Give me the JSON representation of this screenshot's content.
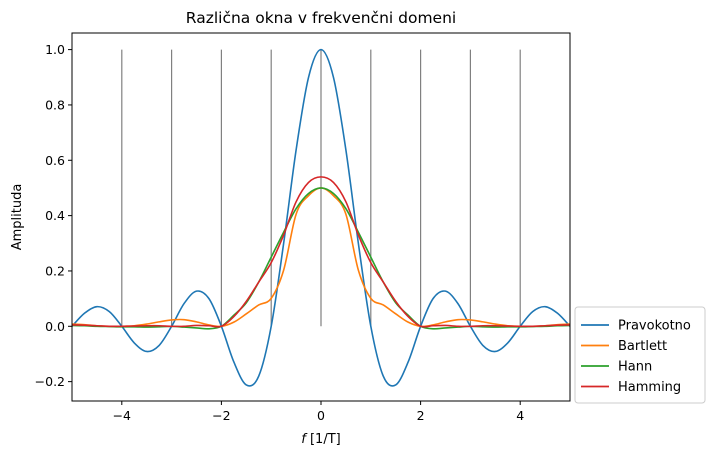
{
  "chart_data": {
    "type": "line",
    "title": "Različna okna v frekvenčni domeni",
    "xlabel_var": "f",
    "xlabel_unit": " [1/T]",
    "ylabel": "Amplituda",
    "xlim": [
      -5,
      5
    ],
    "ylim": [
      -0.27,
      1.06
    ],
    "xticks": [
      -4,
      -2,
      0,
      2,
      4
    ],
    "xtick_labels": [
      "−4",
      "−2",
      "0",
      "2",
      "4"
    ],
    "yticks": [
      -0.2,
      0.0,
      0.2,
      0.4,
      0.6,
      0.8,
      1.0
    ],
    "ytick_labels": [
      "−0.2",
      "0.0",
      "0.2",
      "0.4",
      "0.6",
      "0.8",
      "1.0"
    ],
    "grid": false,
    "legend_position": "outside-right-bottom",
    "sampling_lines": {
      "x": [
        -4,
        -3,
        -2,
        -1,
        0,
        1,
        2,
        3,
        4
      ],
      "y_from": 0,
      "y_to": 1,
      "color": "#808080"
    },
    "x": [
      -5.0,
      -4.75,
      -4.5,
      -4.25,
      -4.0,
      -3.75,
      -3.5,
      -3.25,
      -3.0,
      -2.75,
      -2.5,
      -2.25,
      -2.0,
      -1.75,
      -1.5,
      -1.25,
      -1.0,
      -0.75,
      -0.5,
      -0.25,
      0.0,
      0.25,
      0.5,
      0.75,
      1.0,
      1.25,
      1.5,
      1.75,
      2.0,
      2.25,
      2.5,
      2.75,
      3.0,
      3.25,
      3.5,
      3.75,
      4.0,
      4.25,
      4.5,
      4.75,
      5.0
    ],
    "series": [
      {
        "name": "Pravokotno",
        "color": "#1f77b4",
        "values": [
          0.0,
          0.047,
          0.071,
          0.053,
          0.0,
          -0.06,
          -0.091,
          -0.069,
          0.0,
          0.082,
          0.127,
          0.1,
          0.0,
          -0.129,
          -0.212,
          -0.18,
          0.0,
          0.3,
          0.637,
          0.9,
          1.0,
          0.9,
          0.637,
          0.3,
          0.0,
          -0.18,
          -0.212,
          -0.129,
          0.0,
          0.1,
          0.127,
          0.082,
          0.0,
          -0.069,
          -0.091,
          -0.06,
          0.0,
          0.053,
          0.071,
          0.047,
          0.0
        ]
      },
      {
        "name": "Bartlett",
        "color": "#ff7f0e",
        "values": [
          0.008,
          0.006,
          0.002,
          0.0,
          0.0,
          0.002,
          0.008,
          0.016,
          0.023,
          0.024,
          0.016,
          0.005,
          0.0,
          0.015,
          0.045,
          0.077,
          0.101,
          0.203,
          0.405,
          0.472,
          0.5,
          0.472,
          0.405,
          0.203,
          0.101,
          0.077,
          0.045,
          0.015,
          0.0,
          0.005,
          0.016,
          0.024,
          0.023,
          0.016,
          0.008,
          0.002,
          0.0,
          0.0,
          0.002,
          0.006,
          0.008
        ]
      },
      {
        "name": "Hann",
        "color": "#2ca02c",
        "values": [
          0.003,
          0.002,
          0.0,
          -0.001,
          -0.002,
          -0.002,
          -0.003,
          -0.002,
          0.0,
          -0.003,
          -0.006,
          -0.009,
          0.0,
          0.04,
          0.085,
          0.16,
          0.25,
          0.34,
          0.425,
          0.48,
          0.5,
          0.48,
          0.425,
          0.34,
          0.25,
          0.16,
          0.085,
          0.04,
          0.0,
          -0.009,
          -0.006,
          -0.003,
          0.0,
          -0.002,
          -0.003,
          -0.002,
          -0.002,
          -0.001,
          0.0,
          0.002,
          0.003
        ]
      },
      {
        "name": "Hamming",
        "color": "#d62728",
        "values": [
          0.005,
          0.004,
          0.002,
          0.0,
          0.0,
          0.001,
          0.002,
          0.002,
          0.0,
          0.0,
          0.003,
          0.002,
          0.0,
          0.035,
          0.09,
          0.16,
          0.23,
          0.33,
          0.45,
          0.52,
          0.54,
          0.52,
          0.45,
          0.33,
          0.23,
          0.16,
          0.09,
          0.035,
          0.0,
          0.002,
          0.003,
          0.0,
          0.0,
          0.002,
          0.002,
          0.001,
          0.0,
          0.0,
          0.002,
          0.004,
          0.005
        ]
      }
    ]
  }
}
